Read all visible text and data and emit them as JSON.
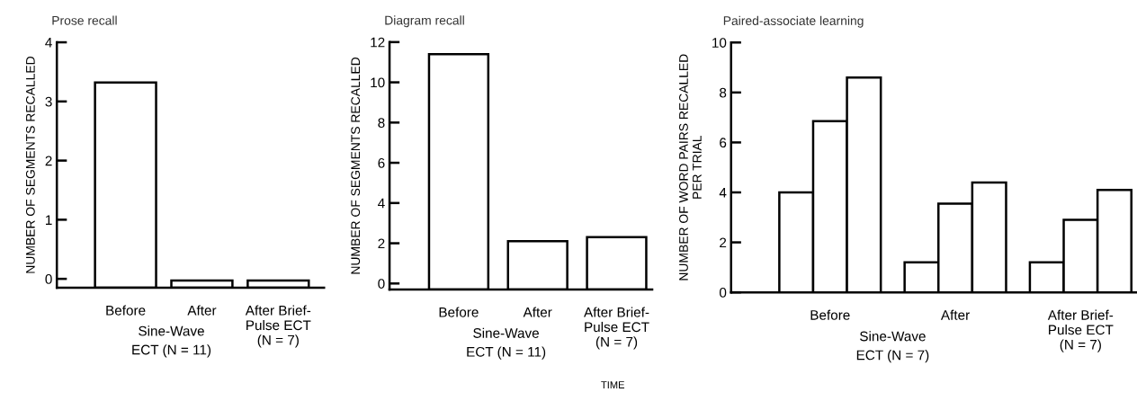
{
  "chart_data": [
    {
      "type": "bar",
      "title": "Prose recall",
      "ylabel": "NUMBER OF SEGMENTS RECALLED",
      "categories": [
        "Before",
        "After",
        "After Brief-\nPulse ECT\n(N = 7)"
      ],
      "base": [
        -0.15,
        -0.15,
        -0.15
      ],
      "values": [
        3.47,
        0.12,
        0.12
      ],
      "color": "#ffffff",
      "ylim": [
        -0.15,
        4
      ],
      "yticks": [
        0,
        1,
        2,
        3,
        4
      ],
      "annotations": [
        "Sine-Wave\nECT (N = 11)"
      ]
    },
    {
      "type": "bar",
      "title": "Diagram recall",
      "ylabel": "NUMBER OF SEGMENTS RECALLED",
      "xlabel": "TIME",
      "categories": [
        "Before",
        "After",
        "After Brief-\nPulse ECT\n(N = 7)"
      ],
      "base": [
        -0.3,
        -0.3,
        -0.3
      ],
      "values": [
        11.7,
        2.4,
        2.6
      ],
      "color": "#ffffff",
      "ylim": [
        -0.3,
        12
      ],
      "yticks": [
        0,
        2,
        4,
        6,
        8,
        10,
        12
      ],
      "annotations": [
        "Sine-Wave\nECT (N = 11)"
      ]
    },
    {
      "type": "bar",
      "title": "Paired-associate learning",
      "ylabel": "NUMBER OF WORD PAIRS RECALLED\nPER TRIAL",
      "categories": [
        "Before",
        "After",
        "After Brief-\nPulse ECT\n(N = 7)"
      ],
      "series": [
        {
          "color": "#ffffff",
          "values": [
            4.0,
            1.2,
            1.2
          ]
        },
        {
          "color": "#ffffff",
          "values": [
            6.85,
            3.55,
            2.9
          ]
        },
        {
          "color": "#ffffff",
          "values": [
            8.6,
            4.4,
            4.1
          ]
        }
      ],
      "ylim": [
        0,
        10
      ],
      "yticks": [
        0,
        2,
        4,
        6,
        8,
        10
      ],
      "annotations": [
        "Sine-Wave\nECT (N = 7)"
      ]
    }
  ]
}
